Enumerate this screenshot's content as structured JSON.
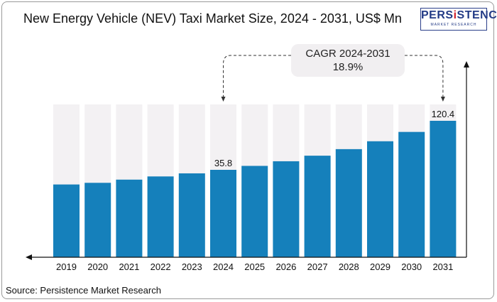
{
  "chart_data": {
    "type": "bar",
    "title": "New Energy Vehicle (NEV) Taxi Market Size, 2024 - 2031, US$ Mn",
    "categories": [
      "2019",
      "2020",
      "2021",
      "2022",
      "2023",
      "2024",
      "2025",
      "2026",
      "2027",
      "2028",
      "2029",
      "2030",
      "2031"
    ],
    "values": [
      22.5,
      24.0,
      26.9,
      29.8,
      32.6,
      35.8,
      42.6,
      50.6,
      60.2,
      71.5,
      85.1,
      101.2,
      120.4
    ],
    "data_labels": {
      "2024": "35.8",
      "2031": "120.4"
    },
    "annotation": {
      "line1": "CAGR 2024-2031",
      "line2": "18.9%"
    },
    "xlabel": "",
    "ylabel": "",
    "bar_color": "#1580bb",
    "background_bar_color": "#f3f1f3"
  },
  "logo": {
    "main_pre": "PERS",
    "main_i": "i",
    "main_post": "STENCE",
    "sub": "MARKET RESEARCH"
  },
  "source": "Source: Persistence Market Research"
}
